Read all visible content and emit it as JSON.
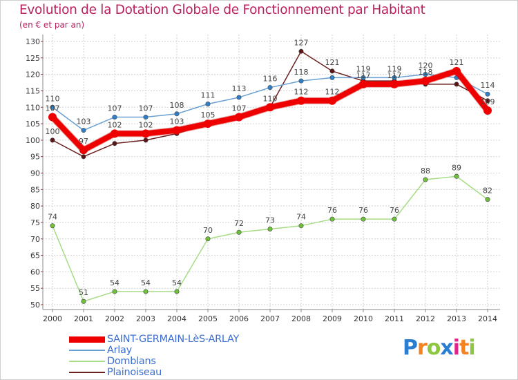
{
  "title": "Evolution de la Dotation Globale de Fonctionnement par Habitant",
  "subtitle": "(en € et par an)",
  "logo": {
    "text": "Proxiti",
    "letters": [
      "P",
      "r",
      "o",
      "x",
      "i",
      "t",
      "i"
    ],
    "colors": [
      "#2a7fd4",
      "#f58220",
      "#8dc63f",
      "#2a7fd4",
      "#e0248a",
      "#f58220",
      "#8dc63f"
    ]
  },
  "chart_data": {
    "type": "line",
    "title": "Evolution de la Dotation Globale de Fonctionnement par Habitant",
    "subtitle": "(en € et par an)",
    "xlabel": "",
    "ylabel": "",
    "categories": [
      "2000",
      "2001",
      "2002",
      "2003",
      "2004",
      "2005",
      "2006",
      "2007",
      "2008",
      "2009",
      "2010",
      "2011",
      "2012",
      "2013",
      "2014"
    ],
    "ylim": [
      50,
      130
    ],
    "yticks": [
      50,
      55,
      60,
      65,
      70,
      75,
      80,
      85,
      90,
      95,
      100,
      105,
      110,
      115,
      120,
      125,
      130
    ],
    "grid": true,
    "legend_position": "bottom-left",
    "series": [
      {
        "name": "Plainoiseau",
        "color": "#6b1f1f",
        "marker_color": "#5a1414",
        "values": [
          100,
          95,
          99,
          100,
          102,
          105,
          107,
          110,
          127,
          121,
          118,
          118,
          117,
          117,
          112
        ],
        "labels": [
          "100",
          "",
          "",
          "",
          "",
          "",
          "",
          "",
          "127",
          "121",
          "",
          "",
          "",
          "",
          ""
        ]
      },
      {
        "name": "Arlay",
        "color": "#6aa0d4",
        "marker_color": "#2f80c8",
        "values": [
          110,
          103,
          107,
          107,
          108,
          111,
          113,
          116,
          118,
          119,
          119,
          119,
          120,
          119,
          114
        ],
        "labels": [
          "110",
          "103",
          "107",
          "107",
          "108",
          "111",
          "113",
          "116",
          "118",
          "",
          "119",
          "119",
          "120",
          "",
          "114"
        ]
      },
      {
        "name": "Domblans",
        "color": "#a6dc86",
        "marker_color": "#6fc03a",
        "values": [
          74,
          51,
          54,
          54,
          54,
          70,
          72,
          73,
          74,
          76,
          76,
          76,
          88,
          89,
          82
        ],
        "labels": [
          "74",
          "51",
          "54",
          "54",
          "54",
          "70",
          "72",
          "73",
          "74",
          "76",
          "76",
          "76",
          "88",
          "89",
          "82"
        ]
      },
      {
        "name": "SAINT-GERMAIN-LèS-ARLAY",
        "color": "#ee0000",
        "marker_color": "#ee0000",
        "values": [
          107,
          97,
          102,
          102,
          103,
          105,
          107,
          110,
          112,
          112,
          117,
          117,
          118,
          121,
          109
        ],
        "labels": [
          "107",
          "97",
          "102",
          "102",
          "103",
          "105",
          "107",
          "110",
          "112",
          "112",
          "117",
          "117",
          "118",
          "121",
          "109"
        ]
      }
    ],
    "legend": [
      "SAINT-GERMAIN-LèS-ARLAY",
      "Arlay",
      "Domblans",
      "Plainoiseau"
    ]
  }
}
